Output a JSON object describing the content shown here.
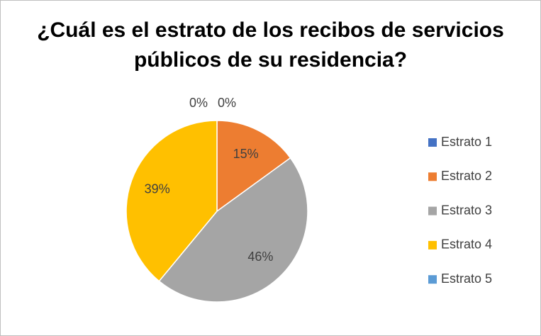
{
  "chart_data": {
    "type": "pie",
    "title": "¿Cuál es el estrato de los recibos de servicios públicos de su residencia?",
    "categories": [
      "Estrato 1",
      "Estrato 2",
      "Estrato 3",
      "Estrato 4",
      "Estrato 5"
    ],
    "values": [
      0,
      15,
      46,
      39,
      0
    ],
    "value_labels": [
      "0%",
      "15%",
      "46%",
      "39%",
      "0%"
    ],
    "colors": [
      "#4472c4",
      "#ed7d31",
      "#a5a5a5",
      "#ffc000",
      "#5b9bd5"
    ],
    "legend": "right"
  }
}
